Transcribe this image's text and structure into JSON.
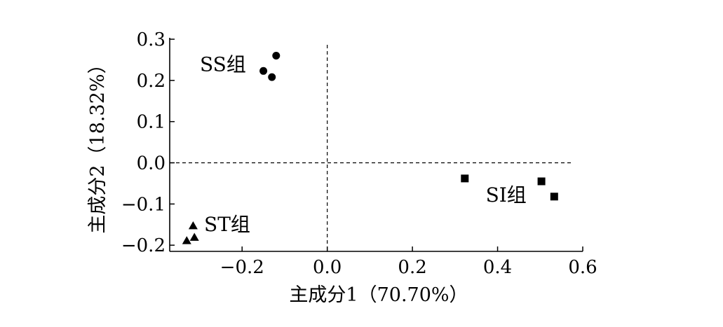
{
  "chart_data": {
    "type": "scatter",
    "title": "",
    "xlabel": "主成分1（70.70%）",
    "ylabel": "主成分2（18.32%）",
    "xlim": [
      -0.37,
      0.6
    ],
    "ylim": [
      -0.215,
      0.3
    ],
    "x_ticks": [
      {
        "value": -0.2,
        "label": "−0.2"
      },
      {
        "value": 0.0,
        "label": "0.0"
      },
      {
        "value": 0.2,
        "label": "0.2"
      },
      {
        "value": 0.4,
        "label": "0.4"
      },
      {
        "value": 0.6,
        "label": "0.6"
      }
    ],
    "y_ticks": [
      {
        "value": 0.3,
        "label": "0.3"
      },
      {
        "value": 0.2,
        "label": "0.2"
      },
      {
        "value": 0.1,
        "label": "0.1"
      },
      {
        "value": 0.0,
        "label": "0.0"
      },
      {
        "value": -0.1,
        "label": "−0.1"
      },
      {
        "value": -0.2,
        "label": "−0.2"
      }
    ],
    "reference_lines": {
      "x": 0.0,
      "y": 0.0,
      "style": "dashed"
    },
    "grid": false,
    "series": [
      {
        "name": "SS组",
        "marker": "circle",
        "color": "#000000",
        "points": [
          [
            -0.12,
            0.26
          ],
          [
            -0.15,
            0.223
          ],
          [
            -0.13,
            0.208
          ]
        ],
        "label_anchor": [
          -0.245,
          0.24
        ]
      },
      {
        "name": "SI组",
        "marker": "square",
        "color": "#000000",
        "points": [
          [
            0.323,
            -0.038
          ],
          [
            0.503,
            -0.045
          ],
          [
            0.533,
            -0.082
          ]
        ],
        "label_anchor": [
          0.42,
          -0.077
        ]
      },
      {
        "name": "ST组",
        "marker": "triangle",
        "color": "#000000",
        "points": [
          [
            -0.315,
            -0.153
          ],
          [
            -0.33,
            -0.189
          ],
          [
            -0.312,
            -0.181
          ]
        ],
        "label_anchor": [
          -0.235,
          -0.149
        ]
      }
    ]
  }
}
